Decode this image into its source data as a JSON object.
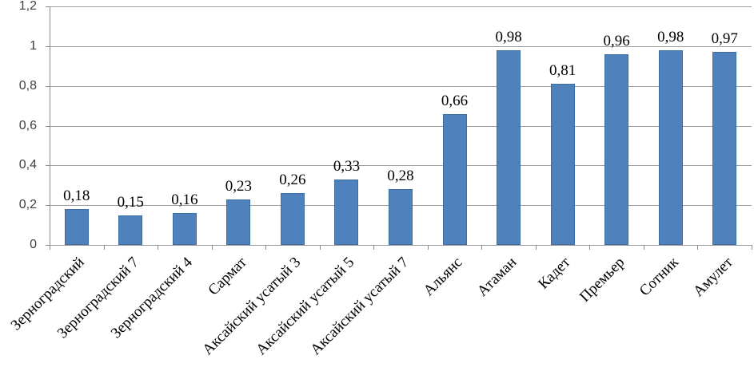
{
  "chart_data": {
    "type": "bar",
    "title": "",
    "xlabel": "",
    "ylabel": "",
    "categories": [
      "Зерноградский",
      "Зерноградский 7",
      "Зерноградский 4",
      "Сармат",
      "Аксайский усатый 3",
      "Аксайский усатый 5",
      "Аксайский усатый 7",
      "Альянс",
      "Атаман",
      "Кадет",
      "Премьер",
      "Сотник",
      "Амулет"
    ],
    "values": [
      0.18,
      0.15,
      0.16,
      0.23,
      0.26,
      0.33,
      0.28,
      0.66,
      0.98,
      0.81,
      0.96,
      0.98,
      0.97
    ],
    "value_labels": [
      "0,18",
      "0,15",
      "0,16",
      "0,23",
      "0,26",
      "0,33",
      "0,28",
      "0,66",
      "0,98",
      "0,81",
      "0,96",
      "0,98",
      "0,97"
    ],
    "ylim": [
      0,
      1.2
    ],
    "y_tick_values": [
      0,
      0.2,
      0.4,
      0.6,
      0.8,
      1,
      1.2
    ],
    "y_tick_labels": [
      "0",
      "0,2",
      "0,4",
      "0,6",
      "0,8",
      "1",
      "1,2"
    ],
    "grid": true,
    "legend": "none",
    "colors": {
      "bar_fill": "#4F81BD",
      "bar_border": "#3D6FA5",
      "gridline": "#9c9c9c",
      "axis": "#8c8c8c",
      "value_text": "#000000",
      "tick_text": "#3f3f3f",
      "background": "#ffffff"
    }
  }
}
